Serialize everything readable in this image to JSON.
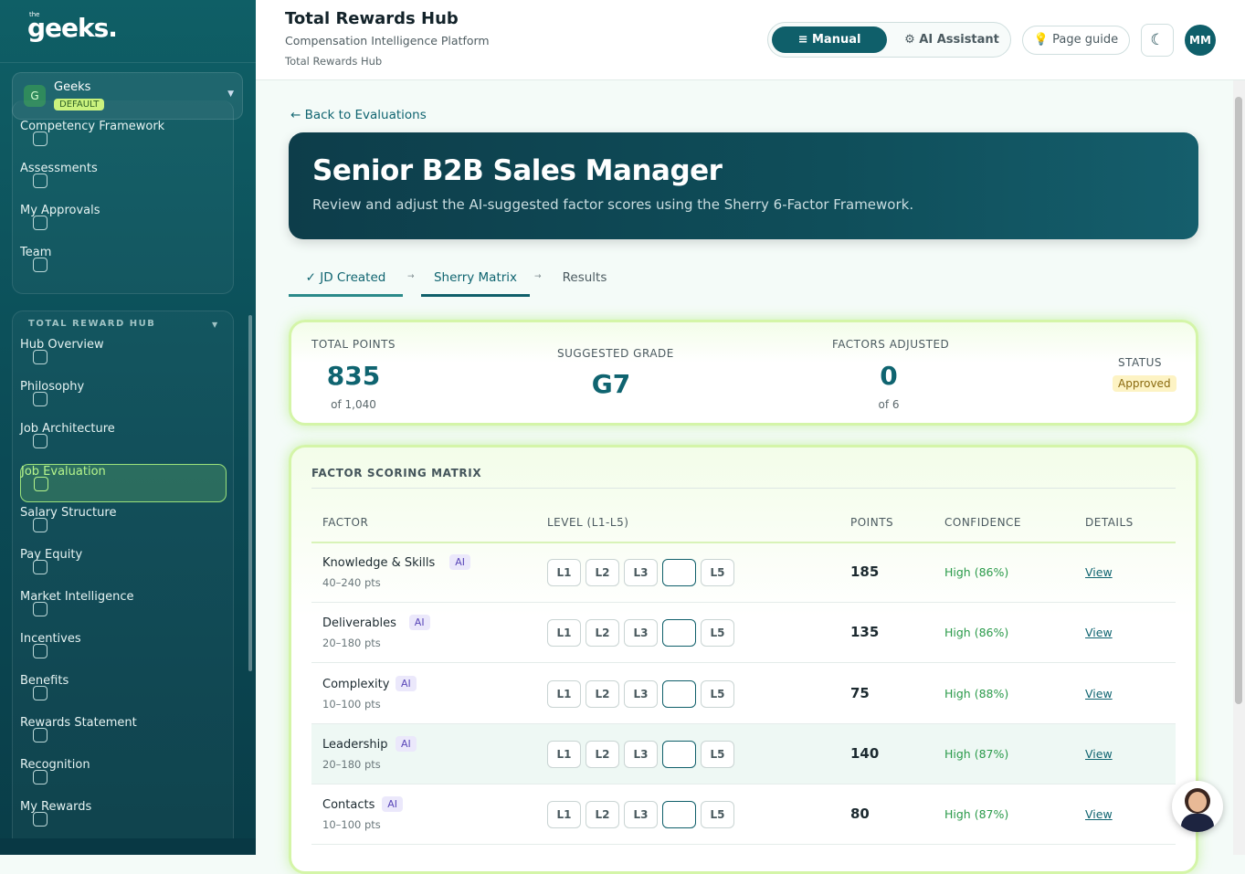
{
  "sidebar": {
    "logo_small": "the",
    "logo": "geeks.",
    "org": {
      "initial": "G",
      "name": "Geeks",
      "badge": "DEFAULT"
    },
    "nav_top": [
      "Competency Framework",
      "Assessments",
      "My Approvals",
      "Team"
    ],
    "section_title": "TOTAL REWARD HUB",
    "nav_hub": [
      "Hub Overview",
      "Philosophy",
      "Job Architecture",
      "Job Evaluation",
      "Salary Structure",
      "Pay Equity",
      "Market Intelligence",
      "Incentives",
      "Benefits",
      "Rewards Statement",
      "Recognition",
      "My Rewards"
    ]
  },
  "header": {
    "title": "Total Rewards Hub",
    "subtitle": "Compensation Intelligence Platform",
    "breadcrumb": "Total Rewards Hub",
    "modes": [
      "Manual",
      "AI Assistant"
    ],
    "page_guide": "Page guide",
    "avatar": "MM"
  },
  "back_link": "← Back to Evaluations",
  "hero": {
    "title": "Senior B2B Sales Manager",
    "description": "Review and adjust the AI-suggested factor scores using the Sherry 6-Factor Framework."
  },
  "steps": [
    "JD Created",
    "Sherry Matrix",
    "Results"
  ],
  "summary": {
    "total_points": {
      "label": "TOTAL POINTS",
      "value": 835,
      "sub": "of 1,040"
    },
    "grade": {
      "label": "SUGGESTED GRADE",
      "value": "G7"
    },
    "adjusted": {
      "label": "FACTORS ADJUSTED",
      "value": 0,
      "sub": "of 6"
    },
    "status": {
      "label": "STATUS",
      "value": "Approved"
    }
  },
  "matrix": {
    "title": "FACTOR SCORING MATRIX",
    "columns": [
      "FACTOR",
      "LEVEL (L1-L5)",
      "POINTS",
      "CONFIDENCE",
      "DETAILS"
    ],
    "levels": [
      "L1",
      "L2",
      "L3",
      "L5"
    ],
    "rows": [
      {
        "factor": "Knowledge & Skills",
        "tag": "AI",
        "range": "40–240 pts",
        "points": 185,
        "confidence": "High (86%)",
        "details": "View"
      },
      {
        "factor": "Deliverables",
        "tag": "AI",
        "range": "20–180 pts",
        "points": 135,
        "confidence": "High (86%)",
        "details": "View"
      },
      {
        "factor": "Complexity",
        "tag": "AI",
        "range": "10–100 pts",
        "points": 75,
        "confidence": "High (88%)",
        "details": "View"
      },
      {
        "factor": "Leadership",
        "tag": "AI",
        "range": "20–180 pts",
        "points": 140,
        "confidence": "High (87%)",
        "details": "View"
      },
      {
        "factor": "Contacts",
        "tag": "AI",
        "range": "10–100 pts",
        "points": 80,
        "confidence": "High (87%)",
        "details": "View"
      }
    ]
  }
}
